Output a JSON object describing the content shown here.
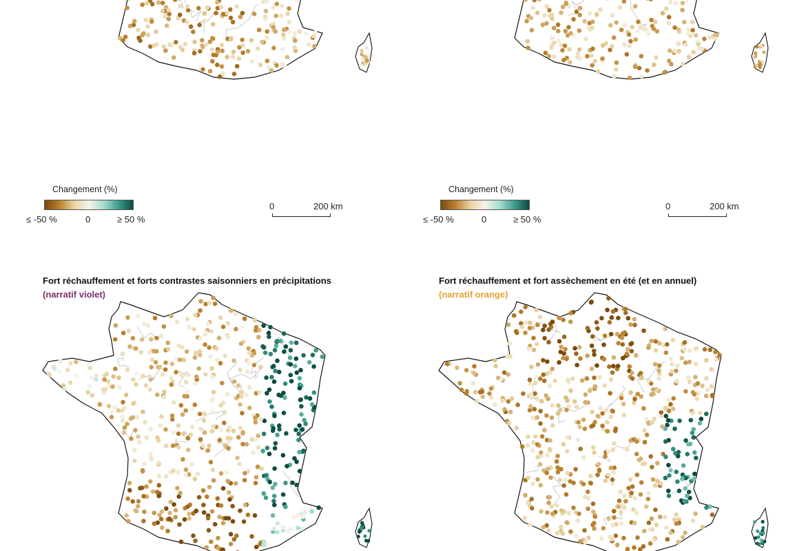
{
  "legend": {
    "title": "Changement (%)",
    "min_label": "≤ -50 %",
    "mid_label": "0",
    "max_label": "≥ 50 %",
    "colors": [
      "#7a4a0d",
      "#b9812e",
      "#e9d3a3",
      "#f5f3ea",
      "#a6dccf",
      "#3f9e8e",
      "#0c4a3e"
    ]
  },
  "scale": {
    "zero_label": "0",
    "distance_label": "200 km"
  },
  "panels": [
    {
      "id": "top-left",
      "title": "",
      "subtitle": "",
      "subtitle_color": "",
      "pattern": "wet-north"
    },
    {
      "id": "top-right",
      "title": "",
      "subtitle": "",
      "subtitle_color": "",
      "pattern": "wet-center"
    },
    {
      "id": "bottom-left",
      "title": "Fort réchauffement et forts contrastes saisonniers en précipitations",
      "subtitle": "(narratif violet)",
      "subtitle_color": "#7b2d6b",
      "pattern": "east-wet-west-dry"
    },
    {
      "id": "bottom-right",
      "title": "Fort réchauffement et fort assèchement en été (et en annuel)",
      "subtitle": "(narratif orange)",
      "subtitle_color": "#e3a232",
      "pattern": "dry"
    }
  ]
}
